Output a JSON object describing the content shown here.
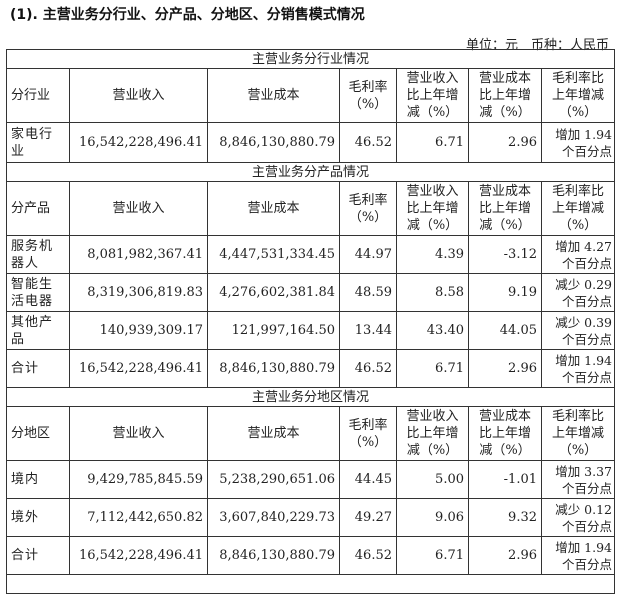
{
  "title": "(1). 主营业务分行业、分产品、分地区、分销售模式情况",
  "unit_line": "单位：元　币种：人民币",
  "headers": {
    "revenue": "营业收入",
    "cost": "营业成本",
    "margin": "毛利率（%）",
    "rev_change": "营业收入比上年增减（%）",
    "cost_change": "营业成本比上年增减（%）",
    "margin_change": "毛利率比上年增减（%）"
  },
  "sections": [
    {
      "title": "主营业务分行业情况",
      "dim_label": "分行业",
      "rows": [
        {
          "name": "家电行业",
          "revenue": "16,542,228,496.41",
          "cost": "8,846,130,880.79",
          "margin": "46.52",
          "rev_change": "6.71",
          "cost_change": "2.96",
          "margin_change": "增加 1.94 个百分点"
        }
      ]
    },
    {
      "title": "主营业务分产品情况",
      "dim_label": "分产品",
      "rows": [
        {
          "name": "服务机器人",
          "revenue": "8,081,982,367.41",
          "cost": "4,447,531,334.45",
          "margin": "44.97",
          "rev_change": "4.39",
          "cost_change": "-3.12",
          "margin_change": "增加 4.27 个百分点"
        },
        {
          "name": "智能生活电器",
          "revenue": "8,319,306,819.83",
          "cost": "4,276,602,381.84",
          "margin": "48.59",
          "rev_change": "8.58",
          "cost_change": "9.19",
          "margin_change": "减少 0.29 个百分点"
        },
        {
          "name": "其他产品",
          "revenue": "140,939,309.17",
          "cost": "121,997,164.50",
          "margin": "13.44",
          "rev_change": "43.40",
          "cost_change": "44.05",
          "margin_change": "减少 0.39 个百分点"
        },
        {
          "name": "合计",
          "revenue": "16,542,228,496.41",
          "cost": "8,846,130,880.79",
          "margin": "46.52",
          "rev_change": "6.71",
          "cost_change": "2.96",
          "margin_change": "增加 1.94 个百分点"
        }
      ]
    },
    {
      "title": "主营业务分地区情况",
      "dim_label": "分地区",
      "rows": [
        {
          "name": "境内",
          "revenue": "9,429,785,845.59",
          "cost": "5,238,290,651.06",
          "margin": "44.45",
          "rev_change": "5.00",
          "cost_change": "-1.01",
          "margin_change": "增加 3.37 个百分点"
        },
        {
          "name": "境外",
          "revenue": "7,112,442,650.82",
          "cost": "3,607,840,229.73",
          "margin": "49.27",
          "rev_change": "9.06",
          "cost_change": "9.32",
          "margin_change": "减少 0.12 个百分点"
        },
        {
          "name": "合计",
          "revenue": "16,542,228,496.41",
          "cost": "8,846,130,880.79",
          "margin": "46.52",
          "rev_change": "6.71",
          "cost_change": "2.96",
          "margin_change": "增加 1.94 个百分点"
        }
      ]
    }
  ]
}
